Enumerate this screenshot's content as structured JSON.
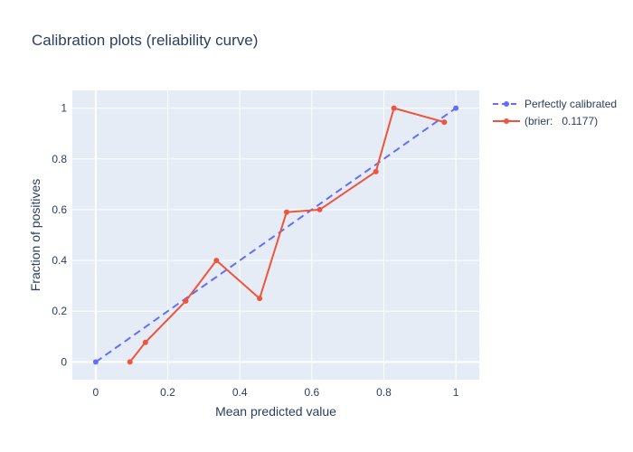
{
  "chart_data": {
    "type": "line",
    "title": "Calibration plots (reliability curve)",
    "xlabel": "Mean predicted value",
    "ylabel": "Fraction of positives",
    "xlim": [
      -0.065,
      1.065
    ],
    "ylim": [
      -0.07,
      1.07
    ],
    "x_ticks": [
      0,
      0.2,
      0.4,
      0.6,
      0.8,
      1
    ],
    "x_tick_labels": [
      "0",
      "0.2",
      "0.4",
      "0.6",
      "0.8",
      "1"
    ],
    "y_ticks": [
      0,
      0.2,
      0.4,
      0.6,
      0.8,
      1
    ],
    "y_tick_labels": [
      "0",
      "0.2",
      "0.4",
      "0.6",
      "0.8",
      "1"
    ],
    "grid": true,
    "legend_position": "top-right-outside",
    "plot_background": "#e5ecf6",
    "series": [
      {
        "name": "Perfectly calibrated",
        "color": "#636efa",
        "dash": "dash",
        "x": [
          0,
          1
        ],
        "y": [
          0,
          1
        ]
      },
      {
        "name": "(brier:   0.1177)",
        "color": "#ef553b",
        "dash": "solid",
        "x": [
          0.095,
          0.138,
          0.25,
          0.335,
          0.455,
          0.53,
          0.622,
          0.778,
          0.828,
          0.968
        ],
        "y": [
          0.0,
          0.077,
          0.24,
          0.4,
          0.25,
          0.59,
          0.6,
          0.75,
          1.0,
          0.945
        ]
      }
    ]
  }
}
